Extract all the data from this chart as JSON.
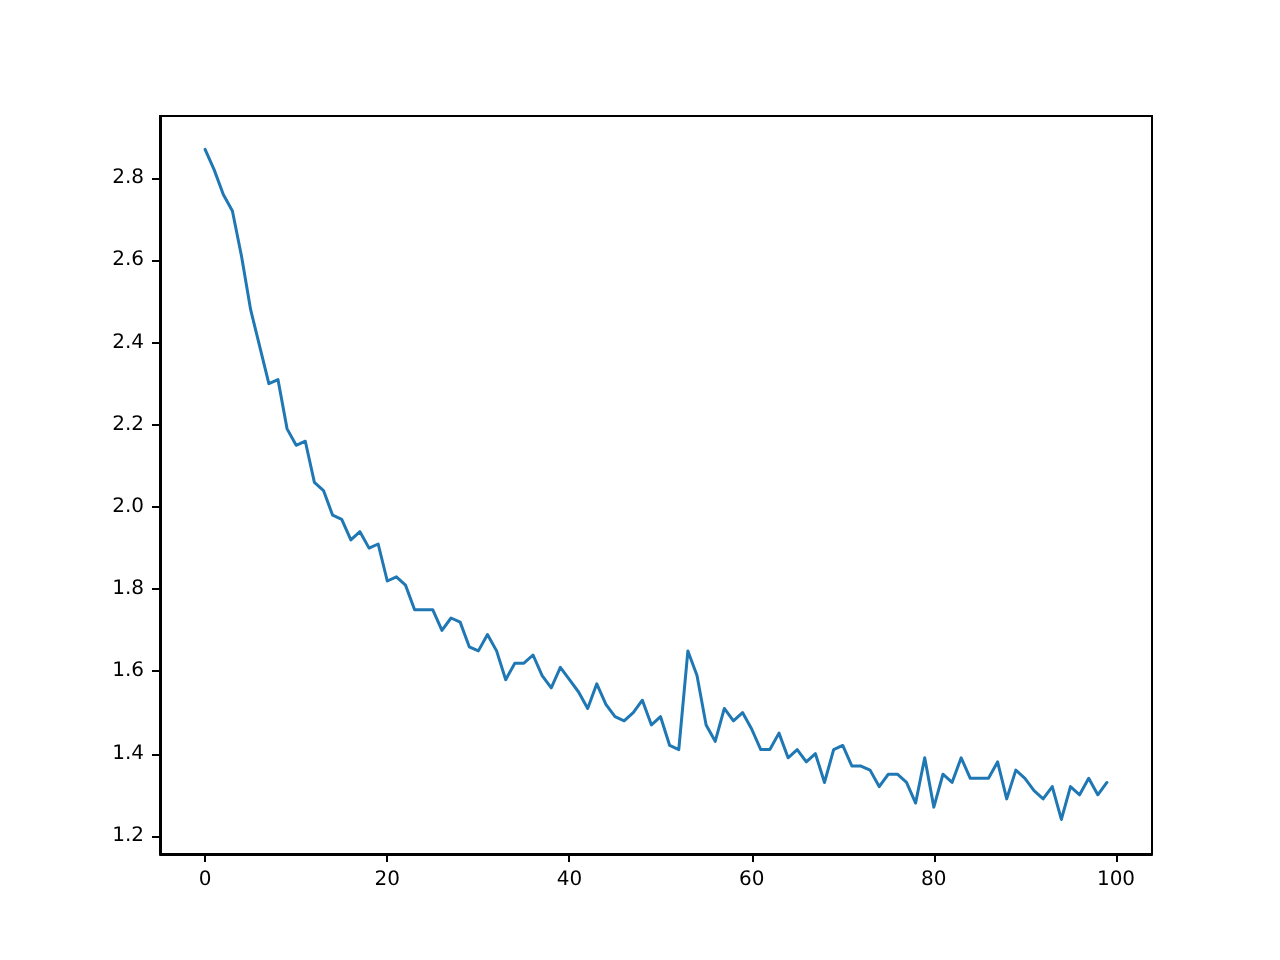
{
  "chart_data": {
    "type": "line",
    "x": [
      0,
      1,
      2,
      3,
      4,
      5,
      6,
      7,
      8,
      9,
      10,
      11,
      12,
      13,
      14,
      15,
      16,
      17,
      18,
      19,
      20,
      21,
      22,
      23,
      24,
      25,
      26,
      27,
      28,
      29,
      30,
      31,
      32,
      33,
      34,
      35,
      36,
      37,
      38,
      39,
      40,
      41,
      42,
      43,
      44,
      45,
      46,
      47,
      48,
      49,
      50,
      51,
      52,
      53,
      54,
      55,
      56,
      57,
      58,
      59,
      60,
      61,
      62,
      63,
      64,
      65,
      66,
      67,
      68,
      69,
      70,
      71,
      72,
      73,
      74,
      75,
      76,
      77,
      78,
      79,
      80,
      81,
      82,
      83,
      84,
      85,
      86,
      87,
      88,
      89,
      90,
      91,
      92,
      93,
      94,
      95,
      96,
      97,
      98,
      99
    ],
    "series": [
      {
        "color": "#1f77b4",
        "values": [
          2.87,
          2.82,
          2.76,
          2.72,
          2.61,
          2.48,
          2.39,
          2.3,
          2.31,
          2.19,
          2.15,
          2.16,
          2.06,
          2.04,
          1.98,
          1.97,
          1.92,
          1.94,
          1.9,
          1.91,
          1.82,
          1.83,
          1.81,
          1.75,
          1.75,
          1.75,
          1.7,
          1.73,
          1.72,
          1.66,
          1.65,
          1.69,
          1.65,
          1.58,
          1.62,
          1.62,
          1.64,
          1.59,
          1.56,
          1.61,
          1.58,
          1.55,
          1.51,
          1.57,
          1.52,
          1.49,
          1.48,
          1.5,
          1.53,
          1.47,
          1.49,
          1.42,
          1.41,
          1.65,
          1.59,
          1.47,
          1.43,
          1.51,
          1.48,
          1.5,
          1.46,
          1.41,
          1.41,
          1.45,
          1.39,
          1.41,
          1.38,
          1.4,
          1.33,
          1.41,
          1.42,
          1.37,
          1.37,
          1.36,
          1.32,
          1.35,
          1.35,
          1.33,
          1.28,
          1.39,
          1.27,
          1.35,
          1.33,
          1.39,
          1.34,
          1.34,
          1.34,
          1.38,
          1.29,
          1.36,
          1.34,
          1.31,
          1.29,
          1.32,
          1.24,
          1.32,
          1.3,
          1.34,
          1.3,
          1.33
        ]
      }
    ],
    "xlim": [
      -4.95,
      103.95
    ],
    "xticks": [
      0,
      20,
      40,
      60,
      80,
      100
    ],
    "ylim": [
      1.156,
      2.951
    ],
    "yticks": [
      1.2,
      1.4,
      1.6,
      1.8,
      {
        "value": 2,
        "label": "2.0"
      },
      2.2,
      2.4,
      2.6,
      2.8
    ],
    "marker": "none",
    "line_style": "solid"
  }
}
